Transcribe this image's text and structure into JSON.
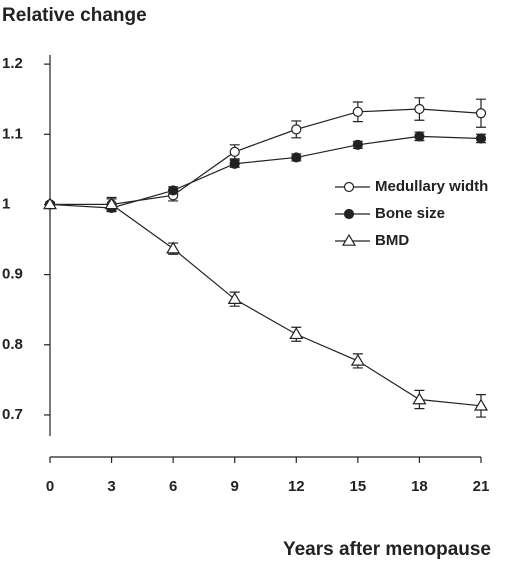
{
  "chart_data": {
    "type": "line",
    "title": "Relative change",
    "x_label": "Years after menopause",
    "x": [
      0,
      3,
      6,
      9,
      12,
      15,
      18,
      21
    ],
    "xlim": [
      0,
      21
    ],
    "xticks": [
      0,
      3,
      6,
      9,
      12,
      15,
      18,
      21
    ],
    "ylim": [
      0.67,
      1.213
    ],
    "yticks": [
      0.7,
      0.8,
      0.9,
      1,
      1.1,
      1.2
    ],
    "legend": "right",
    "series": [
      {
        "name": "Medullary width",
        "color": "#222222",
        "marker": "open-circle",
        "values": [
          1.0,
          1.0,
          1.013,
          1.075,
          1.107,
          1.132,
          1.136,
          1.13
        ],
        "errors": [
          0.003,
          0.008,
          0.008,
          0.01,
          0.012,
          0.014,
          0.016,
          0.02
        ]
      },
      {
        "name": "Bone size",
        "color": "#222222",
        "marker": "filled-circle",
        "values": [
          1.0,
          0.995,
          1.02,
          1.058,
          1.067,
          1.085,
          1.097,
          1.094
        ],
        "errors": [
          0.003,
          0.005,
          0.005,
          0.005,
          0.005,
          0.005,
          0.006,
          0.006
        ]
      },
      {
        "name": "BMD",
        "color": "#222222",
        "marker": "open-triangle",
        "values": [
          1.0,
          1.0,
          0.937,
          0.865,
          0.815,
          0.777,
          0.722,
          0.713
        ],
        "errors": [
          0.003,
          0.01,
          0.008,
          0.01,
          0.01,
          0.01,
          0.013,
          0.016
        ]
      }
    ]
  }
}
